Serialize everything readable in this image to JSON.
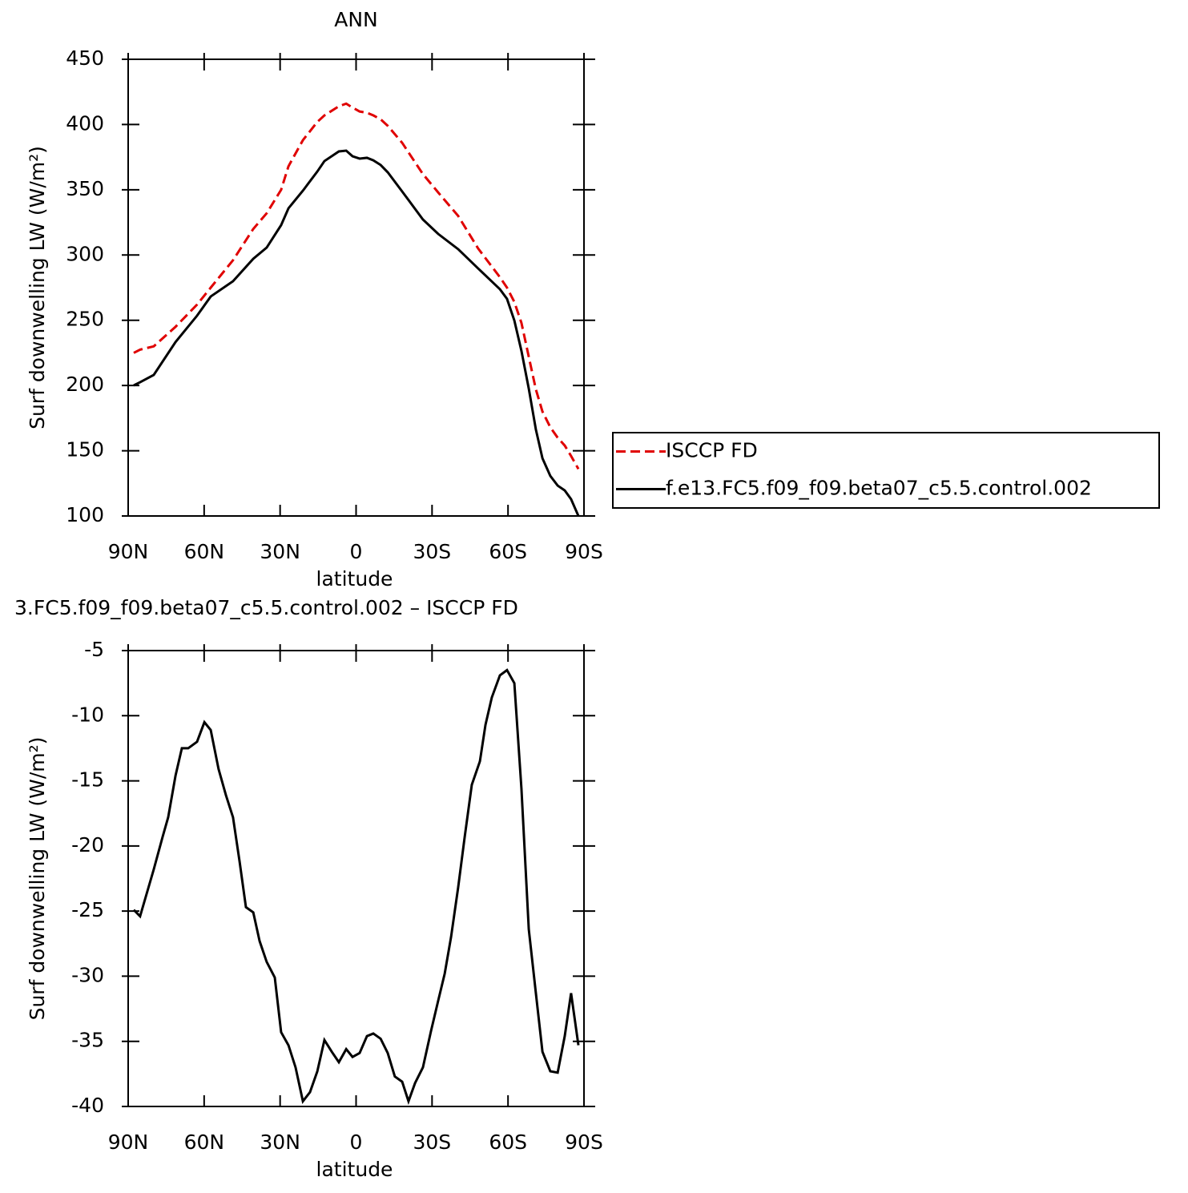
{
  "chart_data": [
    {
      "type": "line",
      "title": "ANN",
      "xlabel": "latitude",
      "ylabel": "Surf downwelling LW (W/m²)",
      "xlim": [
        90,
        -90
      ],
      "ylim": [
        100,
        450
      ],
      "xticks": [
        {
          "value": 90,
          "label": "90N"
        },
        {
          "value": 60,
          "label": "60N"
        },
        {
          "value": 30,
          "label": "30N"
        },
        0,
        {
          "value": -30,
          "label": "30S"
        },
        {
          "value": -60,
          "label": "60S"
        },
        {
          "value": -90,
          "label": "90S"
        }
      ],
      "yticks": [
        100,
        150,
        200,
        250,
        300,
        350,
        400,
        450
      ],
      "legend": "right",
      "x": [
        87.8,
        85.3,
        79.9,
        71.3,
        62.8,
        57.4,
        48.6,
        40.6,
        35.3,
        29.6,
        26.7,
        21.0,
        15.3,
        12.5,
        6.8,
        3.9,
        1.4,
        -1.4,
        -4.3,
        -6.8,
        -9.7,
        -12.5,
        -18.2,
        -26.4,
        -32.4,
        -40.3,
        -48.2,
        -56.8,
        -59.6,
        -62.5,
        -65.3,
        -68.2,
        -71.0,
        -73.6,
        -76.7,
        -79.6,
        -82.4,
        -84.9,
        -87.8
      ],
      "series": [
        {
          "name": "ISCCP FD",
          "color": "#e00000",
          "dash": true,
          "values": [
            225,
            227.5,
            230,
            245,
            262,
            275,
            296,
            320,
            332,
            350,
            368,
            388,
            402,
            407,
            414,
            416,
            413,
            410,
            409,
            407,
            404,
            399,
            386,
            362,
            348,
            330,
            305,
            283,
            275,
            264,
            248,
            222,
            197,
            180,
            168,
            160,
            154,
            146,
            136
          ]
        },
        {
          "name": "f.e13.FC5.f09_f09.beta07_c5.5.control.002",
          "color": "#000000",
          "dash": false,
          "values": [
            200.1,
            202.5,
            208.1,
            233.3,
            253.5,
            268.2,
            279.9,
            297.1,
            305.7,
            322.9,
            335.8,
            349.3,
            364.0,
            372.0,
            379.4,
            380.0,
            375.7,
            373.9,
            374.5,
            372.6,
            369.0,
            363.4,
            348.7,
            327.2,
            316.2,
            304.5,
            289.7,
            273.8,
            266.4,
            249.8,
            226.5,
            197.6,
            166.3,
            144.2,
            130.7,
            123.3,
            119.6,
            112.9,
            100
          ]
        }
      ]
    },
    {
      "type": "line",
      "title": "3.FC5.f09_f09.beta07_c5.5.control.002 – ISCCP FD",
      "xlabel": "latitude",
      "ylabel": "Surf downwelling LW (W/m²)",
      "xlim": [
        90,
        -90
      ],
      "ylim": [
        -40,
        -5
      ],
      "xticks": [
        {
          "value": 90,
          "label": "90N"
        },
        {
          "value": 60,
          "label": "60N"
        },
        {
          "value": 30,
          "label": "30N"
        },
        0,
        {
          "value": -30,
          "label": "30S"
        },
        {
          "value": -60,
          "label": "60S"
        },
        {
          "value": -90,
          "label": "90S"
        }
      ],
      "yticks": [
        -40,
        -35,
        -30,
        -25,
        -20,
        -15,
        -10,
        -5
      ],
      "x": [
        87.8,
        85.3,
        79.9,
        76.4,
        74.2,
        71.3,
        68.8,
        66.3,
        62.8,
        59.9,
        57.4,
        54.3,
        51.4,
        48.6,
        46.0,
        43.5,
        40.6,
        38.1,
        35.3,
        32.1,
        29.6,
        26.7,
        23.9,
        21.0,
        18.2,
        15.3,
        12.5,
        9.6,
        6.8,
        3.9,
        1.4,
        -1.4,
        -4.3,
        -6.8,
        -9.7,
        -12.5,
        -15.3,
        -18.2,
        -20.7,
        -23.3,
        -26.4,
        -29.6,
        -32.4,
        -35.0,
        -37.5,
        -40.3,
        -42.9,
        -45.7,
        -48.9,
        -51.1,
        -53.6,
        -56.8,
        -59.6,
        -62.5,
        -65.3,
        -68.2,
        -71.0,
        -73.6,
        -76.7,
        -79.6,
        -82.4,
        -84.9,
        -87.8
      ],
      "series": [
        {
          "color": "#000000",
          "dash": false,
          "values": [
            -24.9,
            -25.4,
            -21.8,
            -19.3,
            -17.8,
            -14.6,
            -12.5,
            -12.5,
            -12.0,
            -10.5,
            -11.1,
            -14.1,
            -16.1,
            -17.8,
            -21.2,
            -24.7,
            -25.1,
            -27.3,
            -28.9,
            -30.1,
            -34.3,
            -35.3,
            -37.0,
            -39.6,
            -38.9,
            -37.3,
            -34.9,
            -35.8,
            -36.6,
            -35.6,
            -36.2,
            -35.9,
            -34.6,
            -34.4,
            -34.8,
            -35.9,
            -37.7,
            -38.1,
            -39.6,
            -38.2,
            -37.0,
            -34.2,
            -31.9,
            -29.8,
            -27.0,
            -23.2,
            -19.3,
            -15.3,
            -13.5,
            -10.7,
            -8.6,
            -6.9,
            -6.5,
            -7.5,
            -15.6,
            -26.4,
            -31.3,
            -35.8,
            -37.3,
            -37.4,
            -34.6,
            -31.3,
            -35.3
          ]
        }
      ]
    }
  ]
}
